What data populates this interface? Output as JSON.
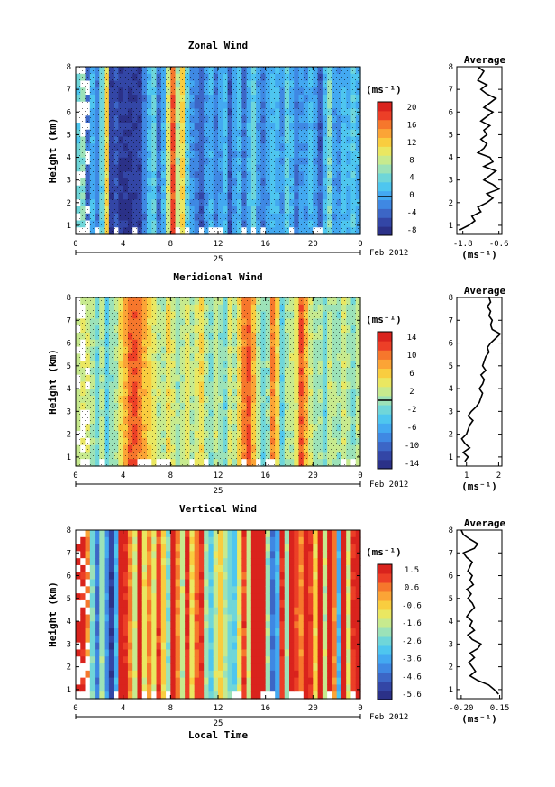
{
  "chart_data": [
    {
      "type": "heatmap",
      "title": "Zonal Wind",
      "ylabel": "Height (km)",
      "xlabel": "",
      "x_ticks": [
        "0",
        "4",
        "8",
        "12",
        "16",
        "20",
        "0"
      ],
      "y_ticks": [
        "1",
        "2",
        "3",
        "4",
        "5",
        "6",
        "7",
        "8"
      ],
      "date_label": "25",
      "month_label": "Feb 2012",
      "ylim": [
        0.6,
        8
      ],
      "xlim": [
        0,
        24
      ],
      "colorbar": {
        "unit": "(ms⁻¹)",
        "range": [
          -9,
          22
        ],
        "ticks": [
          "20",
          "16",
          "12",
          "8",
          "4",
          "0",
          "-4",
          "-8"
        ],
        "zero_line": 0
      },
      "column_values": [
        4,
        6,
        -4,
        1,
        -2,
        4,
        12,
        -6,
        -5,
        -7,
        -7,
        -7,
        -6,
        -6,
        -2,
        2,
        4,
        -3,
        1,
        9,
        18,
        8,
        12,
        3,
        -1,
        -2,
        -4,
        0,
        1,
        -2,
        0,
        2,
        -4,
        0,
        2,
        -3,
        1,
        4,
        0,
        -2,
        0,
        2,
        1,
        -1,
        4,
        1,
        -2,
        0,
        0,
        2,
        0,
        -4,
        1,
        5,
        0,
        -1,
        2,
        1,
        3,
        1
      ],
      "average_profile": {
        "title": "Average",
        "xlabel": "(ms⁻¹)",
        "x_ticks": [
          "-1.8",
          "-0.6"
        ],
        "xlim": [
          -2.0,
          -0.5
        ],
        "y_ticks": [
          "1",
          "2",
          "3",
          "4",
          "5",
          "6",
          "7",
          "8"
        ],
        "heights": [
          0.8,
          1.0,
          1.2,
          1.4,
          1.6,
          1.8,
          2.0,
          2.2,
          2.4,
          2.6,
          2.8,
          3.0,
          3.2,
          3.4,
          3.6,
          3.8,
          4.0,
          4.2,
          4.4,
          4.6,
          4.8,
          5.0,
          5.2,
          5.4,
          5.6,
          5.8,
          6.0,
          6.2,
          6.4,
          6.6,
          6.8,
          7.0,
          7.2,
          7.4,
          7.6,
          7.8,
          8.0
        ],
        "values": [
          -1.9,
          -1.6,
          -1.4,
          -1.5,
          -1.2,
          -1.3,
          -1.0,
          -0.8,
          -1.0,
          -0.6,
          -0.8,
          -1.1,
          -0.9,
          -0.7,
          -1.1,
          -0.8,
          -0.9,
          -1.3,
          -1.1,
          -1.0,
          -1.2,
          -1.0,
          -1.1,
          -0.9,
          -1.2,
          -1.0,
          -0.8,
          -1.1,
          -0.9,
          -0.7,
          -1.0,
          -1.2,
          -1.0,
          -1.3,
          -1.2,
          -1.1,
          -1.3
        ]
      }
    },
    {
      "type": "heatmap",
      "title": "Meridional Wind",
      "ylabel": "Height (km)",
      "xlabel": "",
      "x_ticks": [
        "0",
        "4",
        "8",
        "12",
        "16",
        "20",
        "0"
      ],
      "y_ticks": [
        "1",
        "2",
        "3",
        "4",
        "5",
        "6",
        "7",
        "8"
      ],
      "date_label": "25",
      "month_label": "Feb 2012",
      "ylim": [
        0.6,
        8
      ],
      "xlim": [
        0,
        24
      ],
      "colorbar": {
        "unit": "(ms⁻¹)",
        "range": [
          -16,
          16
        ],
        "ticks": [
          "14",
          "10",
          "6",
          "2",
          "-2",
          "-6",
          "-10",
          "-14"
        ],
        "zero_line": 0
      },
      "column_values": [
        2,
        4,
        3,
        1,
        -2,
        2,
        -4,
        0,
        1,
        5,
        8,
        11,
        12,
        10,
        8,
        6,
        4,
        2,
        1,
        5,
        3,
        0,
        2,
        4,
        1,
        3,
        5,
        1,
        -1,
        2,
        0,
        -2,
        3,
        1,
        6,
        10,
        12,
        7,
        2,
        -2,
        0,
        10,
        6,
        -3,
        1,
        2,
        4,
        12,
        8,
        3,
        0,
        1,
        -2,
        2,
        1,
        0,
        3,
        1,
        -1,
        2
      ],
      "average_profile": {
        "title": "Average",
        "xlabel": "(ms⁻¹)",
        "x_ticks": [
          "1",
          "2"
        ],
        "xlim": [
          0.7,
          2.1
        ],
        "y_ticks": [
          "1",
          "2",
          "3",
          "4",
          "5",
          "6",
          "7",
          "8"
        ],
        "heights": [
          0.8,
          1.0,
          1.2,
          1.4,
          1.6,
          1.8,
          2.0,
          2.2,
          2.4,
          2.6,
          2.8,
          3.0,
          3.2,
          3.4,
          3.6,
          3.8,
          4.0,
          4.2,
          4.4,
          4.6,
          4.8,
          5.0,
          5.2,
          5.4,
          5.6,
          5.8,
          6.0,
          6.2,
          6.4,
          6.6,
          6.8,
          7.0,
          7.2,
          7.4,
          7.6,
          7.8,
          8.0
        ],
        "values": [
          0.95,
          1.05,
          0.9,
          1.1,
          0.95,
          0.85,
          1.0,
          1.05,
          1.1,
          1.2,
          1.05,
          1.15,
          1.3,
          1.4,
          1.45,
          1.5,
          1.4,
          1.5,
          1.55,
          1.45,
          1.6,
          1.5,
          1.55,
          1.6,
          1.7,
          1.65,
          1.75,
          1.9,
          2.05,
          1.8,
          1.75,
          1.8,
          1.7,
          1.75,
          1.65,
          1.75,
          1.7
        ]
      }
    },
    {
      "type": "heatmap",
      "title": "Vertical Wind",
      "ylabel": "Height (km)",
      "xlabel": "Local Time",
      "x_ticks": [
        "0",
        "4",
        "8",
        "12",
        "16",
        "20",
        "0"
      ],
      "y_ticks": [
        "1",
        "2",
        "3",
        "4",
        "5",
        "6",
        "7",
        "8"
      ],
      "date_label": "25",
      "month_label": "Feb 2012",
      "ylim": [
        0.6,
        8
      ],
      "xlim": [
        0,
        24
      ],
      "colorbar": {
        "unit": "(ms⁻¹)",
        "range": [
          -6.1,
          2.0
        ],
        "ticks": [
          "1.5",
          "0.6",
          "-0.6",
          "-1.6",
          "-2.6",
          "-3.6",
          "-4.6",
          "-5.6"
        ]
      },
      "column_values": [
        2,
        1.5,
        0.5,
        -2.5,
        -4.5,
        -2,
        -4,
        -5.5,
        -3.5,
        2,
        1.5,
        0.5,
        -1.5,
        1.8,
        -1,
        0.5,
        -1.2,
        1.2,
        -0.5,
        -2.2,
        1.8,
        0.5,
        -1.5,
        1.5,
        -0.8,
        0.8,
        1.5,
        -2,
        -3,
        -1.5,
        -0.5,
        -1.8,
        -2.5,
        -3,
        -1,
        1.2,
        -1.5,
        1.8,
        2,
        1.8,
        -2,
        -4.5,
        -3.5,
        1.5,
        -2,
        1.8,
        1.2,
        0.5,
        1.8,
        1.2,
        -0.5,
        1.8,
        -1.5,
        1.8,
        0.5,
        -3.5,
        1.8,
        -1.2,
        1.5,
        2
      ],
      "average_profile": {
        "title": "Average",
        "xlabel": "(ms⁻¹)",
        "x_ticks": [
          "-0.20",
          "0.15"
        ],
        "xlim": [
          -0.24,
          0.17
        ],
        "y_ticks": [
          "1",
          "2",
          "3",
          "4",
          "5",
          "6",
          "7",
          "8"
        ],
        "heights": [
          0.8,
          1.0,
          1.2,
          1.4,
          1.6,
          1.8,
          2.0,
          2.2,
          2.4,
          2.6,
          2.8,
          3.0,
          3.2,
          3.4,
          3.6,
          3.8,
          4.0,
          4.2,
          4.4,
          4.6,
          4.8,
          5.0,
          5.2,
          5.4,
          5.6,
          5.8,
          6.0,
          6.2,
          6.4,
          6.6,
          6.8,
          7.0,
          7.2,
          7.4,
          7.6,
          7.8,
          8.0
        ],
        "values": [
          0.14,
          0.1,
          0.05,
          -0.05,
          -0.12,
          -0.07,
          -0.1,
          -0.13,
          -0.08,
          -0.12,
          -0.05,
          -0.02,
          -0.1,
          -0.14,
          -0.08,
          -0.12,
          -0.1,
          -0.15,
          -0.12,
          -0.08,
          -0.1,
          -0.14,
          -0.11,
          -0.15,
          -0.09,
          -0.12,
          -0.1,
          -0.14,
          -0.12,
          -0.1,
          -0.15,
          -0.18,
          -0.08,
          -0.05,
          -0.12,
          -0.18,
          -0.2
        ]
      }
    }
  ]
}
